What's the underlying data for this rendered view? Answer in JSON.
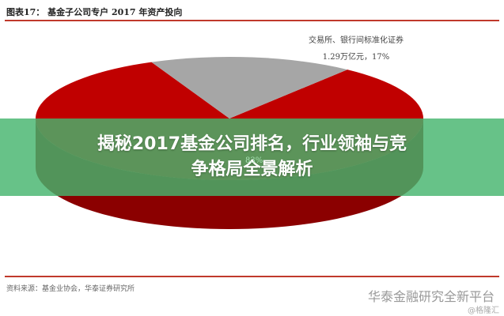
{
  "header": {
    "title": "图表17： 基金子公司专户 2017 年资产投向"
  },
  "chart_data": {
    "type": "pie",
    "style": "3d",
    "slices": [
      {
        "label": "交易所、银行间标准化证券",
        "value_text": "1.29万亿元",
        "percent": 17,
        "color": "#a6a6a6"
      },
      {
        "label": "",
        "value_text": "",
        "percent": 83,
        "color": "#c00000"
      }
    ],
    "labels": {
      "gray_line1": "交易所、银行间标准化证券",
      "gray_line2": "1.29万亿元，17%",
      "red_pct": "83%"
    }
  },
  "banner": {
    "line1": "揭秘2017基金公司排名，行业领袖与竞",
    "line2": "争格局全景解析"
  },
  "footer": {
    "source": "资料来源：基金业协会，华泰证券研究所",
    "watermark": "华泰金融研究全新平台",
    "credit": "@格隆汇"
  }
}
